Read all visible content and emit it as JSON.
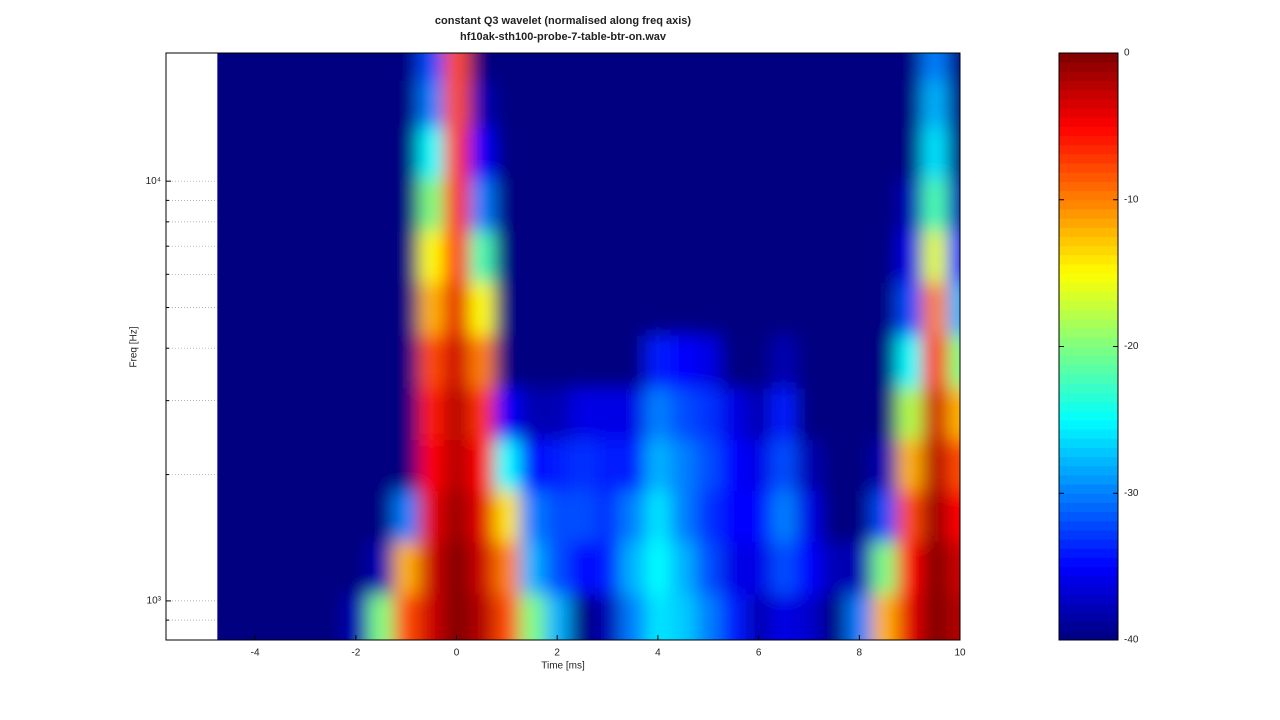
{
  "chart_data": {
    "type": "heatmap",
    "title": "constant Q3 wavelet (normalised along freq axis)",
    "subtitle": "hf10ak-sth100-probe-7-table-btr-on.wav",
    "xlabel": "Time [ms]",
    "ylabel": "Freq [Hz]",
    "xlim": [
      -5.77,
      10
    ],
    "xticks": [
      -4,
      -2,
      0,
      2,
      4,
      6,
      8,
      10
    ],
    "ylim": [
      807,
      20200
    ],
    "yscale": "log",
    "yticks": [
      {
        "value": 1000,
        "label": "10³"
      },
      {
        "value": 10000,
        "label": "10⁴"
      }
    ],
    "yminor": [
      900,
      2000,
      3000,
      4000,
      5000,
      6000,
      7000,
      8000,
      9000
    ],
    "grid": true,
    "colormap": "jet",
    "clim": [
      -40,
      0
    ],
    "cticks": [
      0,
      -10,
      -20,
      -30,
      -40
    ],
    "x": [
      -4.5,
      -4,
      -3.5,
      -3,
      -2.5,
      -2,
      -1.5,
      -1,
      -0.5,
      0,
      0.5,
      1,
      1.5,
      2,
      2.5,
      3,
      3.5,
      4,
      4.5,
      5,
      5.5,
      6,
      6.5,
      7,
      7.5,
      8,
      8.5,
      9,
      9.5,
      10
    ],
    "y": [
      900,
      1200,
      1600,
      2100,
      2800,
      3700,
      5000,
      6600,
      8800,
      11700,
      15500,
      19500
    ],
    "z": [
      [
        -40,
        -40,
        -40,
        -40,
        -40,
        -40,
        -40,
        -40,
        -40,
        -40,
        -40,
        -40
      ],
      [
        -40,
        -40,
        -40,
        -40,
        -40,
        -40,
        -40,
        -40,
        -40,
        -40,
        -40,
        -40
      ],
      [
        -40,
        -40,
        -40,
        -40,
        -40,
        -40,
        -40,
        -40,
        -40,
        -40,
        -40,
        -40
      ],
      [
        -40,
        -40,
        -40,
        -40,
        -40,
        -40,
        -40,
        -40,
        -40,
        -40,
        -40,
        -40
      ],
      [
        -40,
        -40,
        -40,
        -40,
        -40,
        -40,
        -40,
        -40,
        -40,
        -40,
        -40,
        -40
      ],
      [
        -38,
        -40,
        -40,
        -40,
        -40,
        -40,
        -40,
        -40,
        -40,
        -40,
        -40,
        -40
      ],
      [
        -20,
        -38,
        -40,
        -40,
        -40,
        -40,
        -40,
        -40,
        -40,
        -40,
        -40,
        -40
      ],
      [
        -8,
        -12,
        -30,
        -40,
        -40,
        -40,
        -40,
        -40,
        -40,
        -40,
        -40,
        -40
      ],
      [
        -3,
        -3,
        -4,
        -5,
        -6,
        -8,
        -12,
        -15,
        -20,
        -25,
        -30,
        -32
      ],
      [
        0,
        0,
        -1,
        -2,
        -2,
        -3,
        -4,
        -5,
        -6,
        -7,
        -8,
        -8
      ],
      [
        -2,
        -3,
        -4,
        -5,
        -7,
        -10,
        -15,
        -22,
        -30,
        -35,
        -38,
        -40
      ],
      [
        -8,
        -10,
        -14,
        -25,
        -35,
        -40,
        -40,
        -40,
        -40,
        -40,
        -40,
        -40
      ],
      [
        -20,
        -28,
        -30,
        -35,
        -38,
        -40,
        -40,
        -40,
        -40,
        -40,
        -40,
        -40
      ],
      [
        -28,
        -32,
        -32,
        -34,
        -38,
        -40,
        -40,
        -40,
        -40,
        -40,
        -40,
        -40
      ],
      [
        -40,
        -35,
        -32,
        -33,
        -36,
        -40,
        -40,
        -40,
        -40,
        -40,
        -40,
        -40
      ],
      [
        -38,
        -34,
        -33,
        -34,
        -36,
        -40,
        -40,
        -40,
        -40,
        -40,
        -40,
        -40
      ],
      [
        -30,
        -28,
        -30,
        -34,
        -36,
        -40,
        -40,
        -40,
        -40,
        -40,
        -40,
        -40
      ],
      [
        -26,
        -25,
        -26,
        -28,
        -30,
        -34,
        -40,
        -40,
        -40,
        -40,
        -40,
        -40
      ],
      [
        -27,
        -28,
        -30,
        -30,
        -32,
        -35,
        -40,
        -40,
        -40,
        -40,
        -40,
        -40
      ],
      [
        -30,
        -32,
        -33,
        -32,
        -33,
        -36,
        -40,
        -40,
        -40,
        -40,
        -40,
        -40
      ],
      [
        -34,
        -36,
        -35,
        -35,
        -36,
        -40,
        -40,
        -40,
        -40,
        -40,
        -40,
        -40
      ],
      [
        -38,
        -36,
        -35,
        -36,
        -38,
        -40,
        -40,
        -40,
        -40,
        -40,
        -40,
        -40
      ],
      [
        -36,
        -32,
        -30,
        -32,
        -34,
        -38,
        -40,
        -40,
        -40,
        -40,
        -40,
        -40
      ],
      [
        -37,
        -35,
        -36,
        -38,
        -40,
        -40,
        -40,
        -40,
        -40,
        -40,
        -40,
        -40
      ],
      [
        -40,
        -38,
        -40,
        -40,
        -40,
        -40,
        -40,
        -40,
        -40,
        -40,
        -40,
        -40
      ],
      [
        -30,
        -38,
        -40,
        -40,
        -40,
        -40,
        -40,
        -40,
        -40,
        -40,
        -40,
        -40
      ],
      [
        -12,
        -20,
        -32,
        -38,
        -40,
        -40,
        -40,
        -40,
        -40,
        -40,
        -40,
        -40
      ],
      [
        -4,
        -5,
        -8,
        -12,
        -18,
        -25,
        -32,
        -36,
        -38,
        -40,
        -40,
        -40
      ],
      [
        0,
        0,
        -1,
        -2,
        -3,
        -5,
        -10,
        -16,
        -22,
        -26,
        -28,
        -30
      ],
      [
        -2,
        -3,
        -5,
        -8,
        -12,
        -20,
        -28,
        -34,
        -38,
        -40,
        -40,
        -40
      ]
    ]
  }
}
